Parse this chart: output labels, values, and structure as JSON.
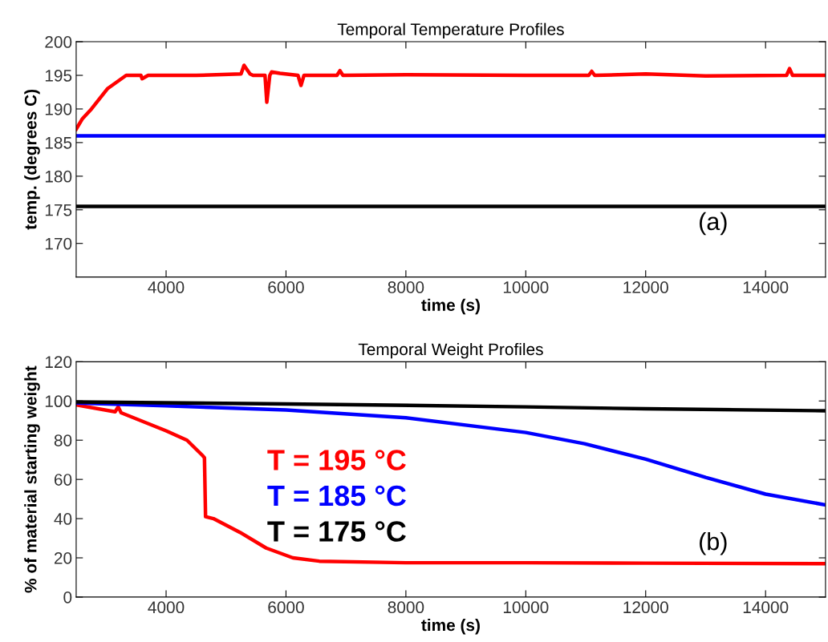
{
  "chart_data": [
    {
      "type": "line",
      "title": "Temporal Temperature Profiles",
      "xlabel": "time (s)",
      "ylabel": "temp. (degrees C)",
      "xlim": [
        2500,
        15000
      ],
      "xticks": [
        4000,
        6000,
        8000,
        10000,
        12000,
        14000
      ],
      "ylim": [
        165,
        200
      ],
      "yticks": [
        170,
        175,
        180,
        185,
        190,
        195,
        200
      ],
      "grid": false,
      "annotations": [
        "(a)"
      ],
      "series": [
        {
          "color": "#ff0000",
          "x": [
            2500,
            2600,
            2755,
            3020,
            3334,
            3500,
            3580,
            3600,
            3700,
            4500,
            5250,
            5300,
            5400,
            5450,
            5650,
            5680,
            5730,
            5760,
            5900,
            6200,
            6250,
            6300,
            6350,
            6850,
            6900,
            6950,
            8000,
            10000,
            11050,
            11100,
            11150,
            12000,
            13000,
            14350,
            14400,
            14450,
            15000
          ],
          "values": [
            187,
            188.5,
            190,
            193,
            195,
            195,
            195,
            194.5,
            195,
            195,
            195.2,
            196.5,
            195.2,
            195,
            195,
            191,
            195,
            195.5,
            195.3,
            195,
            193.5,
            195,
            195,
            195,
            195.7,
            195,
            195.1,
            195,
            195,
            195.6,
            195,
            195.2,
            194.9,
            195,
            196,
            195,
            195
          ]
        },
        {
          "color": "#0000ff",
          "x": [
            2500,
            6000,
            10000,
            15000
          ],
          "values": [
            186,
            186,
            186,
            186
          ]
        },
        {
          "color": "#000000",
          "x": [
            2500,
            6000,
            10000,
            15000
          ],
          "values": [
            175.5,
            175.5,
            175.5,
            175.5
          ]
        }
      ]
    },
    {
      "type": "line",
      "title": "Temporal Weight Profiles",
      "xlabel": "time (s)",
      "ylabel": "% of material starting weight",
      "xlim": [
        2500,
        15000
      ],
      "xticks": [
        4000,
        6000,
        8000,
        10000,
        12000,
        14000
      ],
      "ylim": [
        0,
        120
      ],
      "yticks": [
        0,
        20,
        40,
        60,
        80,
        100,
        120
      ],
      "grid": false,
      "legend": "center left",
      "annotations": [
        "(b)"
      ],
      "series": [
        {
          "name": "T = 195 °C",
          "color": "#ff0000",
          "x": [
            2500,
            3150,
            3200,
            3250,
            4000,
            4349,
            4614,
            4640,
            4658,
            4790,
            5232,
            5669,
            6115,
            6556,
            8000,
            10000,
            12000,
            15000
          ],
          "values": [
            98,
            94.5,
            97,
            94,
            84.8,
            80,
            72,
            71,
            41,
            40,
            33,
            25,
            20,
            18.3,
            17.5,
            17.5,
            17.3,
            17
          ]
        },
        {
          "name": "T = 185 °C",
          "color": "#0000ff",
          "x": [
            2500,
            4000,
            6000,
            8000,
            10000,
            10980,
            12000,
            13000,
            14000,
            15000
          ],
          "values": [
            99,
            97.5,
            95.4,
            91.4,
            83.9,
            78.2,
            70.3,
            61,
            52.5,
            47
          ]
        },
        {
          "name": "T = 175 °C",
          "color": "#000000",
          "x": [
            2500,
            6000,
            10000,
            12000,
            15000
          ],
          "values": [
            99.5,
            98.5,
            97,
            96,
            95
          ]
        }
      ]
    }
  ]
}
